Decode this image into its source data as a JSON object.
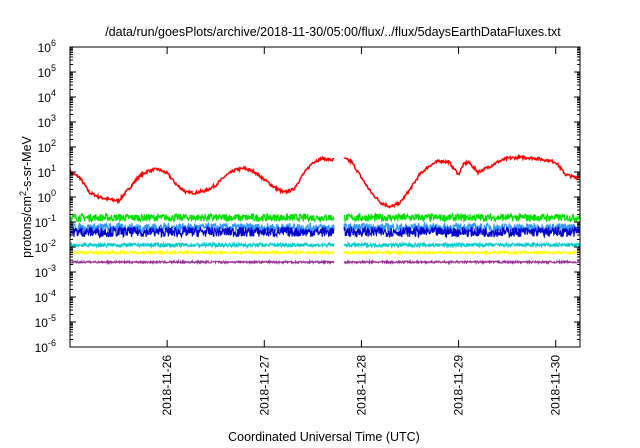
{
  "chart_data": {
    "type": "line",
    "title": "/data/run/goesPlots/archive/2018-11-30/05:00/flux/../flux/5daysEarthDataFluxes.txt",
    "xlabel": "Coordinated Universal Time (UTC)",
    "ylabel_parts": [
      "protons/cm",
      "2",
      "-s-sr-MeV"
    ],
    "y_scale": "log",
    "ylim_exp": [
      -6,
      6
    ],
    "y_ticks": [
      {
        "exp": -6,
        "base": "10",
        "sup": "-6"
      },
      {
        "exp": -5,
        "base": "10",
        "sup": "-5"
      },
      {
        "exp": -4,
        "base": "10",
        "sup": "-4"
      },
      {
        "exp": -3,
        "base": "10",
        "sup": "-3"
      },
      {
        "exp": -2,
        "base": "10",
        "sup": "-2"
      },
      {
        "exp": -1,
        "base": "10",
        "sup": "-1"
      },
      {
        "exp": 0,
        "base": "10",
        "sup": "0"
      },
      {
        "exp": 1,
        "base": "10",
        "sup": "1"
      },
      {
        "exp": 2,
        "base": "10",
        "sup": "2"
      },
      {
        "exp": 3,
        "base": "10",
        "sup": "3"
      },
      {
        "exp": 4,
        "base": "10",
        "sup": "4"
      },
      {
        "exp": 5,
        "base": "10",
        "sup": "5"
      },
      {
        "exp": 6,
        "base": "10",
        "sup": "6"
      }
    ],
    "x_ticks": [
      {
        "day": 1,
        "label": "2018-11-26"
      },
      {
        "day": 2,
        "label": "2018-11-27"
      },
      {
        "day": 3,
        "label": "2018-11-28"
      },
      {
        "day": 4,
        "label": "2018-11-29"
      },
      {
        "day": 5,
        "label": "2018-11-30"
      }
    ],
    "xlim_days": [
      0.0,
      5.25
    ],
    "grid": false,
    "gap_days": [
      2.72,
      2.82
    ],
    "series": [
      {
        "color": "#ff0000",
        "x": [
          0.0,
          0.1,
          0.2,
          0.3,
          0.4,
          0.5,
          0.6,
          0.7,
          0.8,
          0.9,
          1.0,
          1.1,
          1.2,
          1.3,
          1.4,
          1.5,
          1.6,
          1.7,
          1.8,
          1.9,
          2.0,
          2.1,
          2.2,
          2.3,
          2.4,
          2.5,
          2.6,
          2.7,
          2.8,
          2.9,
          3.0,
          3.1,
          3.2,
          3.3,
          3.4,
          3.5,
          3.6,
          3.7,
          3.8,
          3.9,
          4.0,
          4.05,
          4.1,
          4.2,
          4.3,
          4.4,
          4.5,
          4.6,
          4.7,
          4.8,
          4.9,
          5.0,
          5.1,
          5.2,
          5.25
        ],
        "y": [
          10,
          6,
          1.5,
          1.0,
          0.8,
          0.7,
          2,
          6,
          11,
          13,
          9,
          3,
          1.5,
          1.5,
          1.8,
          3,
          7,
          12,
          14,
          10,
          5,
          2.5,
          1.5,
          2,
          8,
          25,
          35,
          30,
          38,
          25,
          6,
          1.5,
          0.6,
          0.4,
          0.6,
          2,
          8,
          18,
          28,
          25,
          8,
          20,
          25,
          10,
          15,
          25,
          35,
          38,
          38,
          35,
          30,
          25,
          8,
          6,
          7
        ]
      },
      {
        "color": "#00e000",
        "level": 0.15,
        "spread": 0.3
      },
      {
        "color": "#3399ff",
        "level": 0.06,
        "spread": 0.35
      },
      {
        "color": "#0000cc",
        "level": 0.04,
        "spread": 0.4
      },
      {
        "color": "#00cccc",
        "level": 0.012,
        "spread": 0.15
      },
      {
        "color": "#ffff00",
        "level": 0.006,
        "spread": 0.1
      },
      {
        "color": "#993399",
        "level": 0.0025,
        "spread": 0.08
      }
    ]
  }
}
